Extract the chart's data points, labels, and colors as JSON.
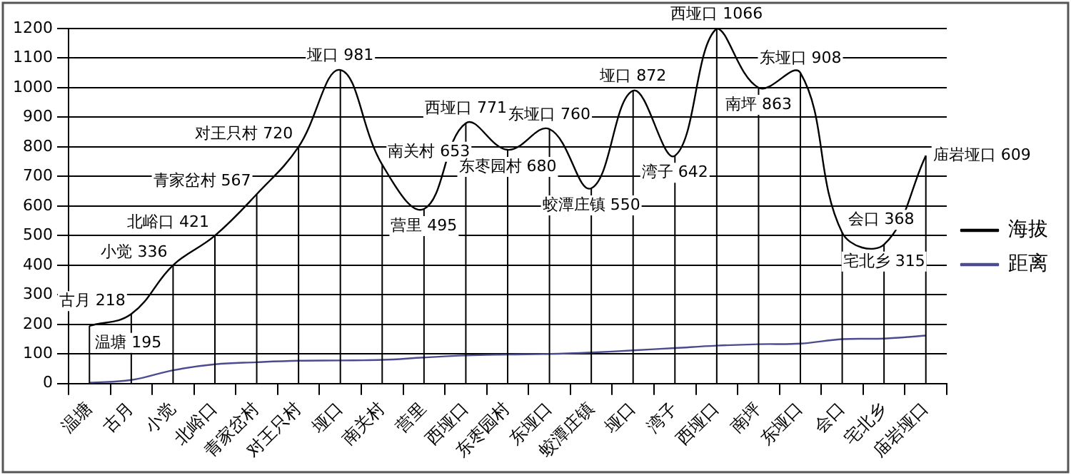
{
  "chart_data": {
    "type": "line",
    "categories": [
      "温塘",
      "古月",
      "小觉",
      "北峪口",
      "青家岔村",
      "对王只村",
      "垭口",
      "南关村",
      "营里",
      "西垭口",
      "东枣园村",
      "东垭口",
      "蛟潭庄镇",
      "垭口",
      "湾子",
      "西垭口",
      "南坪",
      "东垭口",
      "会口",
      "宅北乡",
      "庙岩垭口"
    ],
    "series": [
      {
        "name": "海拔",
        "color": "#000000",
        "values": [
          195,
          235,
          400,
          500,
          640,
          800,
          1060,
          740,
          590,
          880,
          790,
          860,
          660,
          990,
          770,
          1200,
          1000,
          1050,
          510,
          470,
          770
        ]
      },
      {
        "name": "距离",
        "color": "#4b4b8f",
        "values": [
          3,
          12,
          45,
          65,
          72,
          77,
          78,
          80,
          88,
          95,
          98,
          100,
          105,
          112,
          120,
          128,
          133,
          135,
          150,
          152,
          162
        ]
      }
    ],
    "ylim": [
      0,
      1200
    ],
    "yticks": [
      0,
      100,
      200,
      300,
      400,
      500,
      600,
      700,
      800,
      900,
      1000,
      1100,
      1200
    ],
    "grid": true,
    "legend": "right",
    "marker": "none",
    "line_style": "solid",
    "annotations": [
      {
        "text": "温塘 195",
        "x": "温塘",
        "y": 195
      },
      {
        "text": "古月 218",
        "x": "古月",
        "y": 235
      },
      {
        "text": "小觉 336",
        "x": "小觉",
        "y": 400
      },
      {
        "text": "北峪口 421",
        "x": "北峪口",
        "y": 500
      },
      {
        "text": "青家岔村 567",
        "x": "青家岔村",
        "y": 640
      },
      {
        "text": "对王只村 720",
        "x": "对王只村",
        "y": 800
      },
      {
        "text": "垭口 981",
        "x": "垭口",
        "y": 1060
      },
      {
        "text": "南关村 653",
        "x": "南关村",
        "y": 740
      },
      {
        "text": "营里 495",
        "x": "营里",
        "y": 590
      },
      {
        "text": "西垭口 771",
        "x": "西垭口",
        "y": 880
      },
      {
        "text": "东枣园村 680",
        "x": "东枣园村",
        "y": 790
      },
      {
        "text": "东垭口 760",
        "x": "东垭口",
        "y": 860
      },
      {
        "text": "蛟潭庄镇 550",
        "x": "蛟潭庄镇",
        "y": 660
      },
      "垭口 872",
      {
        "text": "湾子 642",
        "x": "湾子",
        "y": 770
      },
      "西垭口 1066",
      {
        "text": "南坪 863",
        "x": "南坪",
        "y": 1000
      },
      "东垭口 908",
      {
        "text": "会口 368",
        "x": "会口",
        "y": 510
      },
      {
        "text": "宅北乡 315",
        "x": "宅北乡",
        "y": 470
      },
      {
        "text": "庙岩垭口 609",
        "x": "庙岩垭口",
        "y": 770
      }
    ]
  }
}
